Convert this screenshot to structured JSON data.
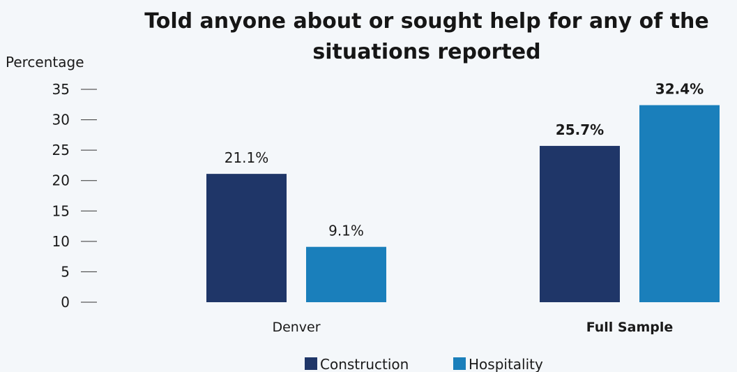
{
  "chart_data": {
    "type": "bar",
    "title": "Told anyone about or sought help for any of the situations reported",
    "title_lines": [
      "Told anyone about or sought help for any of the",
      "situations reported"
    ],
    "ylabel": "Percentage",
    "xlabel": "",
    "ylim": [
      0,
      35
    ],
    "yticks": [
      0,
      5,
      10,
      15,
      20,
      25,
      30,
      35
    ],
    "grid": false,
    "legend_position": "bottom",
    "categories": [
      "Denver",
      "Full Sample"
    ],
    "category_bold": [
      false,
      true
    ],
    "series": [
      {
        "name": "Construction",
        "color": "#1f3668",
        "values": [
          21.1,
          25.7
        ],
        "labels": [
          "21.1%",
          "25.7%"
        ]
      },
      {
        "name": "Hospitality",
        "color": "#1a7fbb",
        "values": [
          9.1,
          32.4
        ],
        "labels": [
          "9.1%",
          "32.4%"
        ]
      }
    ]
  }
}
